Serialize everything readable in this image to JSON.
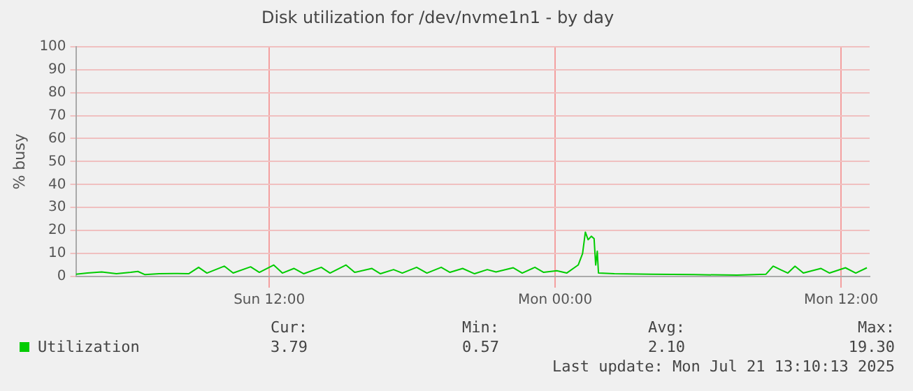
{
  "chart_data": {
    "type": "line",
    "title": "Disk utilization for /dev/nvme1n1 - by day",
    "ylabel": "% busy",
    "x": [
      "2025-07-20T03:53",
      "2025-07-20T04:22",
      "2025-07-20T04:58",
      "2025-07-20T05:35",
      "2025-07-20T06:11",
      "2025-07-20T06:29",
      "2025-07-20T06:47",
      "2025-07-20T07:23",
      "2025-07-20T08:00",
      "2025-07-20T08:37",
      "2025-07-20T09:02",
      "2025-07-20T09:23",
      "2025-07-20T10:07",
      "2025-07-20T10:29",
      "2025-07-20T11:13",
      "2025-07-20T11:35",
      "2025-07-20T12:11",
      "2025-07-20T12:33",
      "2025-07-20T13:02",
      "2025-07-20T13:27",
      "2025-07-20T14:11",
      "2025-07-20T14:33",
      "2025-07-20T15:13",
      "2025-07-20T15:35",
      "2025-07-20T16:18",
      "2025-07-20T16:40",
      "2025-07-20T17:13",
      "2025-07-20T17:35",
      "2025-07-20T18:11",
      "2025-07-20T18:37",
      "2025-07-20T19:13",
      "2025-07-20T19:35",
      "2025-07-20T20:07",
      "2025-07-20T20:37",
      "2025-07-20T21:09",
      "2025-07-20T21:31",
      "2025-07-20T22:14",
      "2025-07-20T22:37",
      "2025-07-20T23:09",
      "2025-07-20T23:31",
      "2025-07-21T00:04",
      "2025-07-21T00:29",
      "2025-07-21T00:58",
      "2025-07-21T01:09",
      "2025-07-21T01:16",
      "2025-07-21T01:23",
      "2025-07-21T01:31",
      "2025-07-21T01:38",
      "2025-07-21T01:42",
      "2025-07-21T01:46",
      "2025-07-21T01:49",
      "2025-07-21T02:29",
      "2025-07-21T04:00",
      "2025-07-21T05:49",
      "2025-07-21T07:38",
      "2025-07-21T08:51",
      "2025-07-21T09:09",
      "2025-07-21T09:27",
      "2025-07-21T09:46",
      "2025-07-21T10:04",
      "2025-07-21T10:25",
      "2025-07-21T11:09",
      "2025-07-21T11:31",
      "2025-07-21T12:11",
      "2025-07-21T12:37",
      "2025-07-21T13:05"
    ],
    "series": [
      {
        "name": "Utilization",
        "color": "#00cc00",
        "values": [
          1.0,
          1.5,
          2.0,
          1.2,
          1.8,
          2.2,
          0.8,
          1.2,
          1.3,
          1.2,
          4.0,
          1.5,
          4.5,
          1.5,
          4.2,
          1.8,
          5.0,
          1.5,
          3.5,
          1.2,
          4.0,
          1.5,
          5.0,
          1.8,
          3.5,
          1.2,
          3.0,
          1.5,
          4.0,
          1.5,
          4.0,
          1.8,
          3.5,
          1.2,
          3.0,
          2.0,
          3.8,
          1.5,
          4.0,
          1.8,
          2.5,
          1.5,
          5.0,
          10.0,
          19.3,
          16.0,
          17.5,
          16.5,
          5.0,
          11.0,
          1.5,
          1.2,
          1.0,
          0.8,
          0.6,
          1.0,
          4.5,
          3.0,
          1.5,
          4.5,
          1.5,
          3.5,
          1.5,
          3.8,
          1.5,
          3.8
        ]
      }
    ],
    "xlim": [
      "2025-07-20T03:53",
      "2025-07-21T13:12"
    ],
    "xticks": [
      {
        "value": "2025-07-20T12:00",
        "label": "Sun 12:00"
      },
      {
        "value": "2025-07-21T00:00",
        "label": "Mon 00:00"
      },
      {
        "value": "2025-07-21T12:00",
        "label": "Mon 12:00"
      }
    ],
    "ylim": [
      0,
      100
    ],
    "yticks": [
      0,
      10,
      20,
      30,
      40,
      50,
      60,
      70,
      80,
      90,
      100
    ],
    "grid": true,
    "legend": "bottom left",
    "marker": "none",
    "line_style": "solid",
    "annotations": [
      "Cur:",
      "Min:",
      "Avg:",
      "Max:",
      "3.79",
      "0.57",
      "2.10",
      "19.30",
      "Last update: Mon Jul 21 13:10:13 2025"
    ]
  }
}
